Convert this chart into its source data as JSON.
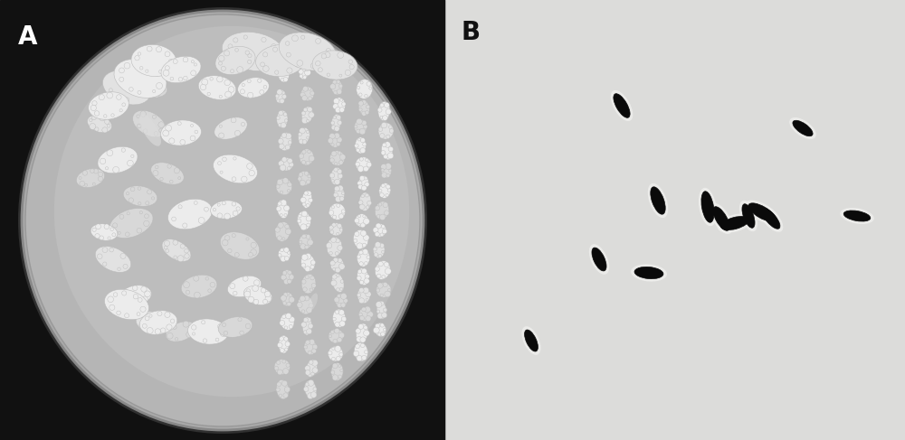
{
  "fig_width": 10.0,
  "fig_height": 4.87,
  "dpi": 100,
  "panel_A": {
    "label": "A",
    "label_fontsize": 20,
    "label_color": "#ffffff",
    "bg_color": "#111111",
    "plate_outer_color": "#404040",
    "plate_rim_color": "#888888",
    "plate_agar_color": "#c0c0c0",
    "colony_color": "#e8e8e8",
    "colony_edge_color": "#cccccc"
  },
  "panel_B": {
    "label": "B",
    "label_fontsize": 20,
    "label_color": "#111111",
    "bg_color": "#dcdcda",
    "bacteria_color": "#0a0a0a",
    "halo_color": "#f0f0ee"
  }
}
